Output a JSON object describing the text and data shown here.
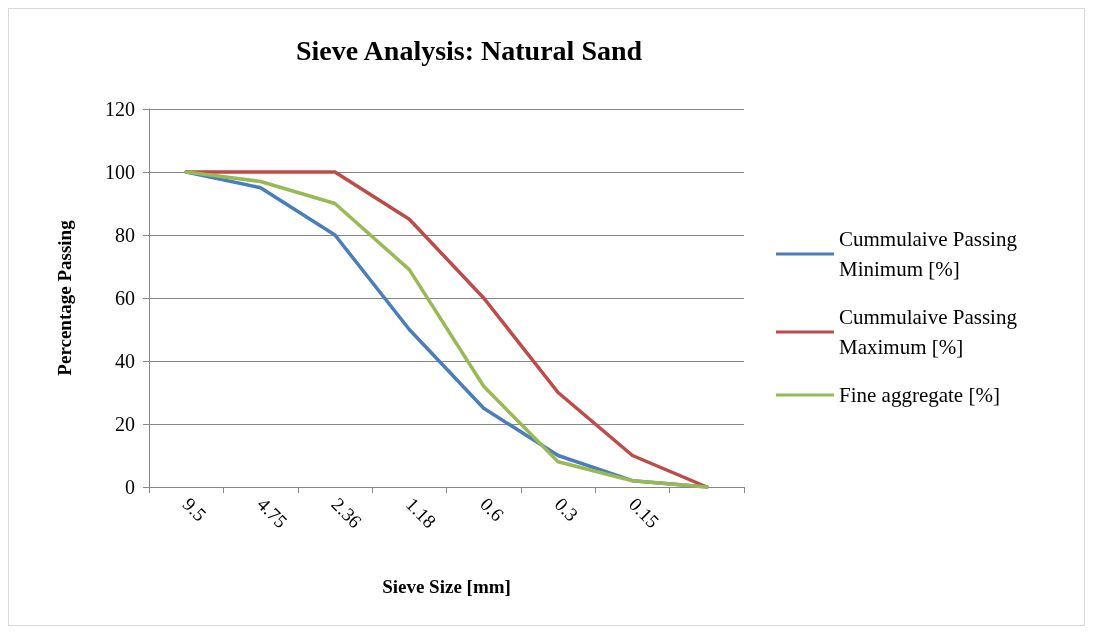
{
  "chart_data": {
    "type": "line",
    "title": "Sieve Analysis: Natural Sand",
    "xlabel": "Sieve Size [mm]",
    "ylabel": "Percentage Passing",
    "categories": [
      "9.5",
      "4.75",
      "2.36",
      "1.18",
      "0.6",
      "0.3",
      "0.15",
      null
    ],
    "series": [
      {
        "name": "Cummulaive Passing Minimum [%]",
        "color": "#4a7ebb",
        "values": [
          100,
          95,
          80,
          50,
          25,
          10,
          2,
          0
        ]
      },
      {
        "name": "Cummulaive Passing Maximum [%]",
        "color": "#be4b48",
        "values": [
          100,
          100,
          100,
          85,
          60,
          30,
          10,
          0
        ]
      },
      {
        "name": "Fine aggregate [%]",
        "color": "#98b954",
        "values": [
          100,
          97,
          90,
          69,
          32,
          8,
          2,
          0
        ]
      }
    ],
    "ylim": [
      0,
      120
    ],
    "yticks": [
      0,
      20,
      40,
      60,
      80,
      100,
      120
    ],
    "grid": "y",
    "legend": "right",
    "marker": "none",
    "line_style": "solid"
  }
}
